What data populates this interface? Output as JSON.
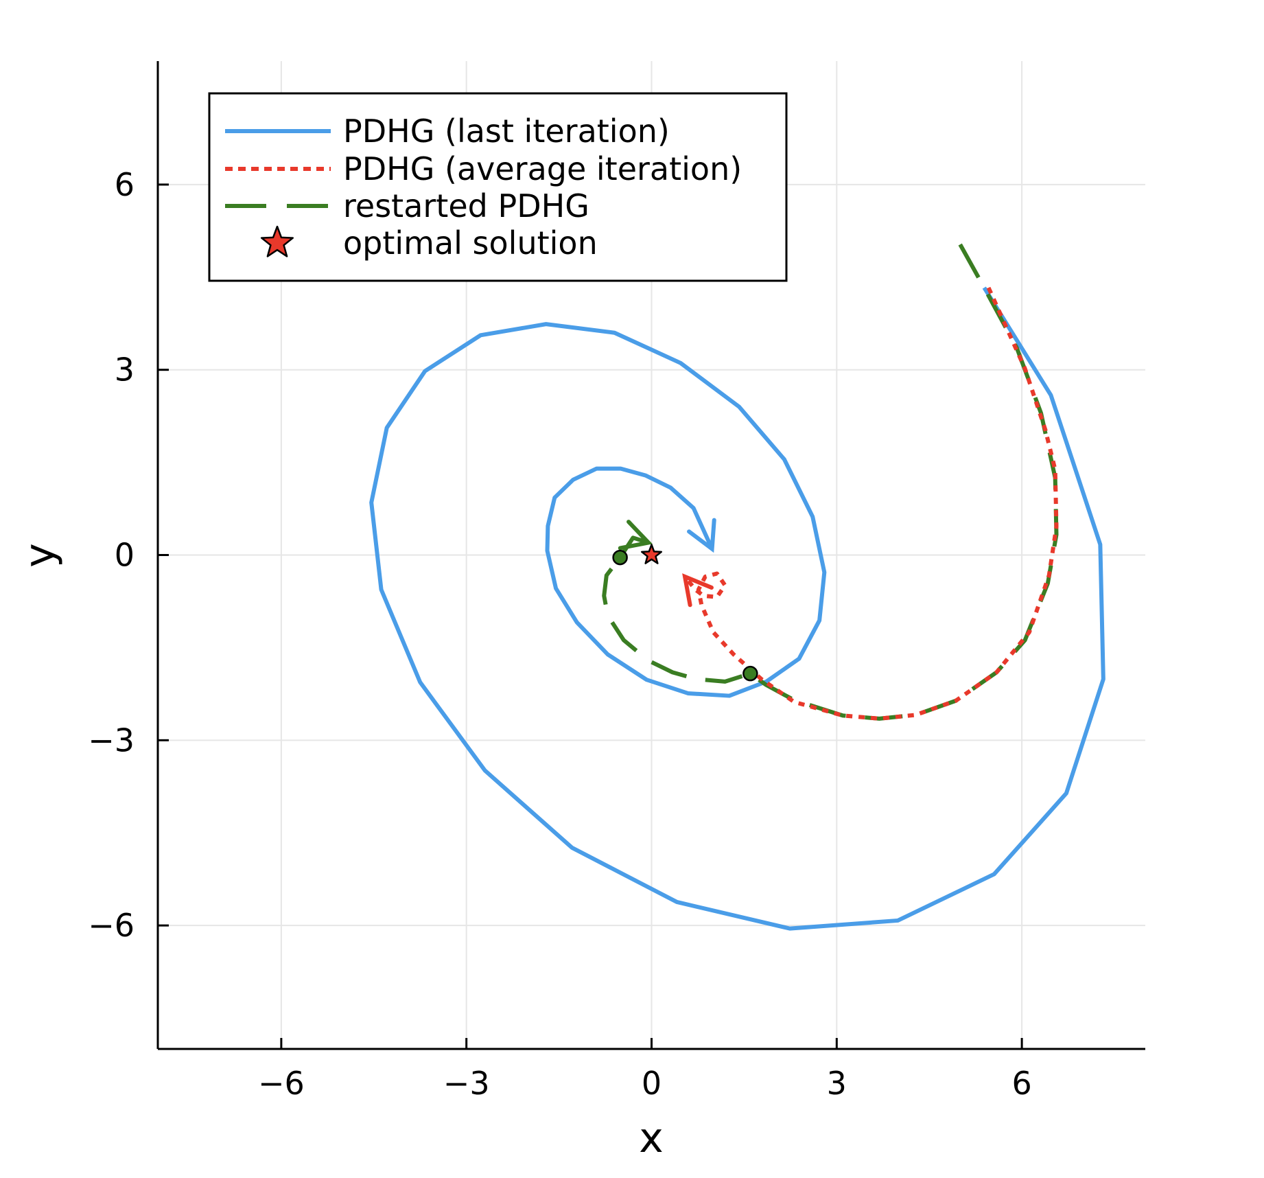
{
  "chart_data": {
    "type": "line",
    "xlabel": "x",
    "ylabel": "y",
    "xlim": [
      -8,
      8
    ],
    "ylim": [
      -8,
      8
    ],
    "xticks": [
      -6,
      -3,
      0,
      3,
      6
    ],
    "yticks": [
      -6,
      -3,
      0,
      3,
      6
    ],
    "xtick_labels": [
      "−6",
      "−3",
      "0",
      "3",
      "6"
    ],
    "ytick_labels": [
      "−6",
      "−3",
      "0",
      "3",
      "6"
    ],
    "grid": true,
    "legend_position": "top-left",
    "series": [
      {
        "name": "PDHG (last iteration)",
        "style": "solid",
        "color": "#4a9de8",
        "arrow_at_end": true,
        "points": [
          [
            5.39,
            4.33
          ],
          [
            6.47,
            2.59
          ],
          [
            7.27,
            0.17
          ],
          [
            7.32,
            -2.01
          ],
          [
            6.72,
            -3.86
          ],
          [
            5.55,
            -5.17
          ],
          [
            3.99,
            -5.92
          ],
          [
            2.24,
            -6.05
          ],
          [
            0.41,
            -5.62
          ],
          [
            -1.29,
            -4.74
          ],
          [
            -2.7,
            -3.49
          ],
          [
            -3.75,
            -2.06
          ],
          [
            -4.38,
            -0.56
          ],
          [
            -4.54,
            0.85
          ],
          [
            -4.29,
            2.06
          ],
          [
            -3.67,
            2.98
          ],
          [
            -2.77,
            3.56
          ],
          [
            -1.71,
            3.74
          ],
          [
            -0.6,
            3.6
          ],
          [
            0.47,
            3.11
          ],
          [
            1.42,
            2.4
          ],
          [
            2.15,
            1.55
          ],
          [
            2.61,
            0.62
          ],
          [
            2.8,
            -0.28
          ],
          [
            2.72,
            -1.06
          ],
          [
            2.39,
            -1.68
          ],
          [
            1.86,
            -2.05
          ],
          [
            1.26,
            -2.28
          ],
          [
            0.59,
            -2.24
          ],
          [
            -0.08,
            -2.02
          ],
          [
            -0.71,
            -1.61
          ],
          [
            -1.21,
            -1.09
          ],
          [
            -1.55,
            -0.54
          ],
          [
            -1.69,
            0.07
          ],
          [
            -1.68,
            0.47
          ],
          [
            -1.57,
            0.93
          ],
          [
            -1.27,
            1.22
          ],
          [
            -0.89,
            1.4
          ],
          [
            -0.5,
            1.4
          ],
          [
            -0.1,
            1.29
          ],
          [
            0.31,
            1.09
          ],
          [
            0.68,
            0.76
          ],
          [
            0.98,
            0.1
          ]
        ]
      },
      {
        "name": "PDHG (average iteration)",
        "style": "dotted",
        "color": "#e8392b",
        "arrow_at_end": true,
        "points": [
          [
            5.46,
            4.33
          ],
          [
            6.05,
            3.02
          ],
          [
            6.38,
            2.03
          ],
          [
            6.54,
            1.38
          ],
          [
            6.56,
            0.46
          ],
          [
            6.44,
            -0.33
          ],
          [
            6.12,
            -1.25
          ],
          [
            5.59,
            -1.9
          ],
          [
            4.93,
            -2.36
          ],
          [
            4.28,
            -2.59
          ],
          [
            3.69,
            -2.65
          ],
          [
            3.1,
            -2.6
          ],
          [
            2.31,
            -2.38
          ],
          [
            1.78,
            -2.01
          ],
          [
            1.33,
            -1.61
          ],
          [
            1.0,
            -1.25
          ],
          [
            0.81,
            -0.81
          ],
          [
            0.76,
            -0.56
          ],
          [
            0.87,
            -0.35
          ],
          [
            1.06,
            -0.3
          ],
          [
            1.19,
            -0.49
          ],
          [
            1.06,
            -0.68
          ],
          [
            0.84,
            -0.66
          ],
          [
            0.71,
            -0.56
          ],
          [
            0.54,
            -0.35
          ]
        ]
      },
      {
        "name": "restarted PDHG",
        "style": "dashed",
        "color": "#3a7d22",
        "arrow_at_end": true,
        "points": [
          [
            5.0,
            5.03
          ],
          [
            5.39,
            4.33
          ],
          [
            5.92,
            3.35
          ],
          [
            6.31,
            2.3
          ],
          [
            6.54,
            1.25
          ],
          [
            6.56,
            0.33
          ],
          [
            6.42,
            -0.46
          ],
          [
            6.05,
            -1.38
          ],
          [
            5.59,
            -1.9
          ],
          [
            4.93,
            -2.36
          ],
          [
            4.28,
            -2.59
          ],
          [
            3.69,
            -2.65
          ],
          [
            3.1,
            -2.6
          ],
          [
            2.31,
            -2.35
          ],
          [
            1.85,
            -2.1
          ],
          [
            1.6,
            -1.92
          ],
          [
            1.19,
            -2.05
          ],
          [
            0.73,
            -2.01
          ],
          [
            0.34,
            -1.9
          ],
          [
            -0.05,
            -1.71
          ],
          [
            -0.45,
            -1.38
          ],
          [
            -0.71,
            -0.98
          ],
          [
            -0.77,
            -0.66
          ],
          [
            -0.73,
            -0.33
          ],
          [
            -0.51,
            -0.04
          ],
          [
            -0.3,
            0.28
          ],
          [
            -0.05,
            0.2
          ]
        ],
        "restart_markers": [
          [
            1.6,
            -1.92
          ],
          [
            -0.51,
            -0.04
          ]
        ]
      }
    ],
    "optimal_solution": {
      "name": "optimal solution",
      "point": [
        0,
        0
      ],
      "color": "#e8392b",
      "marker": "star"
    }
  },
  "colors": {
    "grid": "#e6e6e6",
    "axis": "#000000"
  }
}
